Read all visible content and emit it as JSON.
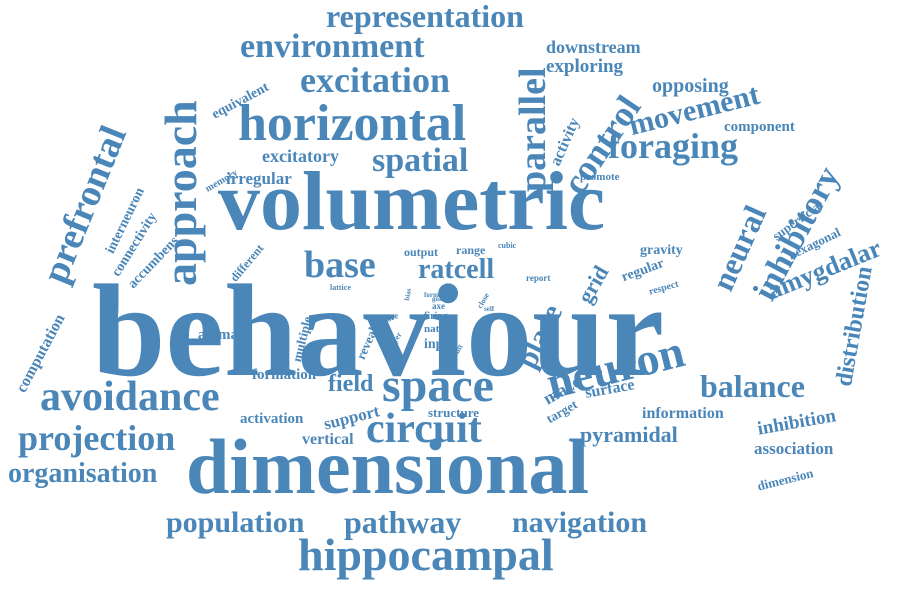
{
  "color": "#4a86b8",
  "words": {
    "behaviour": "behaviour",
    "volumetric": "volumetric",
    "dimensional": "dimensional",
    "hippocampal": "hippocampal",
    "horizontal": "horizontal",
    "approach": "approach",
    "space": "space",
    "neuron": "neuron",
    "circuit": "circuit",
    "avoidance": "avoidance",
    "excitation": "excitation",
    "environment": "environment",
    "representation": "representation",
    "pathway": "pathway",
    "population": "population",
    "navigation": "navigation",
    "projection": "projection",
    "prefrontal": "prefrontal",
    "spatial": "spatial",
    "parallel": "parallel",
    "control": "control",
    "foraging": "foraging",
    "movement": "movement",
    "inhibitory": "inhibitory",
    "neural": "neural",
    "base": "base",
    "ratcell": "ratcell",
    "balance": "balance",
    "organisation": "organisation",
    "place": "place",
    "grid": "grid",
    "amygdalar": "amygdalar",
    "distribution": "distribution",
    "field": "field",
    "pyramidal": "pyramidal",
    "downstream": "downstream",
    "exploring": "exploring",
    "opposing": "opposing",
    "component": "component",
    "excitatory": "excitatory",
    "irregular": "irregular",
    "computation": "computation",
    "inhibition": "inhibition",
    "association": "association",
    "information": "information",
    "animal": "animal",
    "formation": "formation",
    "activation": "activation",
    "support": "support",
    "vertical": "vertical",
    "structure": "structure",
    "maze": "maze",
    "target": "target",
    "surface": "surface",
    "dimension": "dimension",
    "superficial": "superficial",
    "hexagonal": "hexagonal",
    "gravity": "gravity",
    "regular": "regular",
    "respect": "respect",
    "promote": "promote",
    "output": "output",
    "range": "range",
    "cubic": "cubic",
    "report": "report",
    "input": "input",
    "nature": "nature",
    "firing": "firing",
    "axe": "axe",
    "form": "form",
    "goal": "goal",
    "close": "close",
    "self": "self",
    "result": "result",
    "layer": "layer",
    "bias": "bias",
    "more": "more",
    "reveal": "reveal",
    "multiple": "multiple",
    "lattice": "lattice",
    "different": "different",
    "memory": "memory",
    "equivalent": "equivalent",
    "activity": "activity",
    "interneuron": "interneuron",
    "connectivity": "connectivity",
    "accumbens": "accumbens"
  }
}
